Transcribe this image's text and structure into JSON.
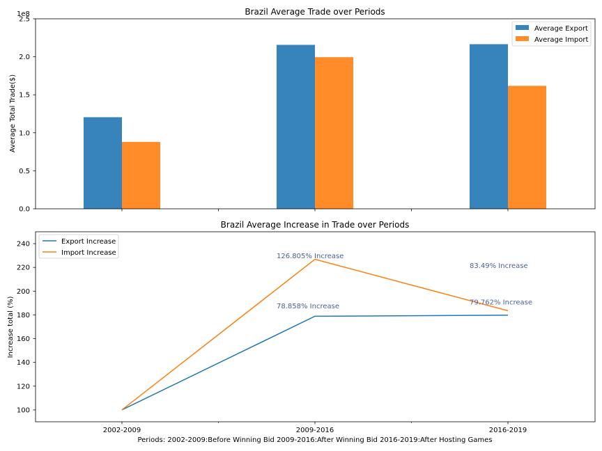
{
  "chart_data": [
    {
      "type": "bar",
      "title": "Brazil Average Trade over Periods",
      "xlabel": "",
      "ylabel": "Average Total Trade($)",
      "y_offset_label": "1e8",
      "categories": [
        "2002-2009",
        "2009-2016",
        "2016-2019"
      ],
      "series": [
        {
          "name": "Average Export",
          "color": "#3684bb",
          "values": [
            120500000,
            215700000,
            216600000
          ]
        },
        {
          "name": "Average Import",
          "color": "#ff8c29",
          "values": [
            88000000,
            199500000,
            161800000
          ]
        }
      ],
      "ylim": [
        0,
        250000000
      ],
      "yticks": [
        {
          "value": 0,
          "label": "0.0"
        },
        {
          "value": 50000000,
          "label": "0.5"
        },
        {
          "value": 100000000,
          "label": "1.0"
        },
        {
          "value": 150000000,
          "label": "1.5"
        },
        {
          "value": 200000000,
          "label": "2.0"
        },
        {
          "value": 250000000,
          "label": "2.5"
        }
      ],
      "grid": false,
      "legend_position": "top-right"
    },
    {
      "type": "line",
      "title": "Brazil Average Increase in Trade over Periods",
      "xlabel": "Periods: 2002-2009:Before Winning Bid     2009-2016:After Winning Bid     2016-2019:After Hosting Games",
      "ylabel": "Increase total (%)",
      "categories": [
        "2002-2009",
        "2009-2016",
        "2016-2019"
      ],
      "series": [
        {
          "name": "Export Increase",
          "color": "#1f77b4",
          "values": [
            100,
            178.858,
            179.762
          ]
        },
        {
          "name": "Import Increase",
          "color": "#ff7f0e",
          "values": [
            100,
            226.805,
            183.49
          ]
        }
      ],
      "annotations": [
        {
          "text": "126.805% Increase",
          "x": 1,
          "y": 230
        },
        {
          "text": "78.858% Increase",
          "x": 1,
          "y": 188
        },
        {
          "text": "83.49% Increase",
          "x": 2,
          "y": 222
        },
        {
          "text": "79.762% Increase",
          "x": 2,
          "y": 191
        }
      ],
      "annotation_color": "#4a5f99",
      "ylim": [
        90,
        250
      ],
      "yticks": [
        100,
        120,
        140,
        160,
        180,
        200,
        220,
        240
      ],
      "grid": false,
      "legend_position": "top-left"
    }
  ]
}
